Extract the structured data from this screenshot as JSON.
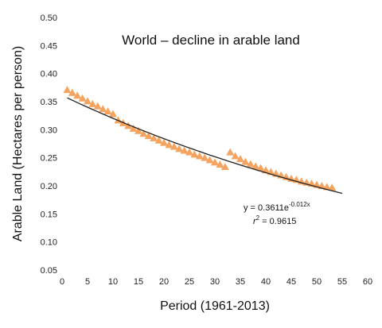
{
  "chart_data": {
    "type": "scatter",
    "title": "World – decline in arable land",
    "xlabel": "Period (1961-2013)",
    "ylabel": "Arable Land (Hectares per person)",
    "xlim": [
      0,
      60
    ],
    "ylim": [
      0.05,
      0.5
    ],
    "x_ticks": [
      "0",
      "5",
      "10",
      "15",
      "20",
      "25",
      "30",
      "35",
      "40",
      "45",
      "50",
      "55",
      "60"
    ],
    "y_ticks": [
      "0.05",
      "0.10",
      "0.15",
      "0.20",
      "0.25",
      "0.30",
      "0.35",
      "0.40",
      "0.45",
      "0.50"
    ],
    "marker": "triangle",
    "marker_color": "#f4a460",
    "grid": false,
    "series": [
      {
        "x": [
          1,
          2,
          3,
          4,
          5,
          6,
          7,
          8,
          9,
          10,
          11,
          12,
          13,
          14,
          15,
          16,
          17,
          18,
          19,
          20,
          21,
          22,
          23,
          24,
          25,
          26,
          27,
          28,
          29,
          30,
          31,
          32,
          33,
          34,
          35,
          36,
          37,
          38,
          39,
          40,
          41,
          42,
          43,
          44,
          45,
          46,
          47,
          48,
          49,
          50,
          51,
          52,
          53
        ],
        "y": [
          0.371,
          0.366,
          0.361,
          0.356,
          0.351,
          0.346,
          0.342,
          0.337,
          0.333,
          0.328,
          0.317,
          0.312,
          0.307,
          0.302,
          0.298,
          0.293,
          0.289,
          0.285,
          0.281,
          0.277,
          0.273,
          0.27,
          0.266,
          0.263,
          0.26,
          0.256,
          0.253,
          0.25,
          0.246,
          0.242,
          0.238,
          0.234,
          0.26,
          0.253,
          0.248,
          0.243,
          0.239,
          0.235,
          0.232,
          0.228,
          0.225,
          0.222,
          0.219,
          0.216,
          0.213,
          0.211,
          0.208,
          0.206,
          0.204,
          0.202,
          0.2,
          0.198,
          0.197
        ]
      }
    ],
    "trendline": {
      "type": "exponential",
      "a": 0.3611,
      "b": -0.012,
      "x_range": [
        1,
        55
      ],
      "equation_label": "y = 0.3611e",
      "equation_exponent": "-0.012x",
      "r2_label": "r",
      "r2_exponent": "2",
      "r2_value": " = 0.9615"
    }
  }
}
